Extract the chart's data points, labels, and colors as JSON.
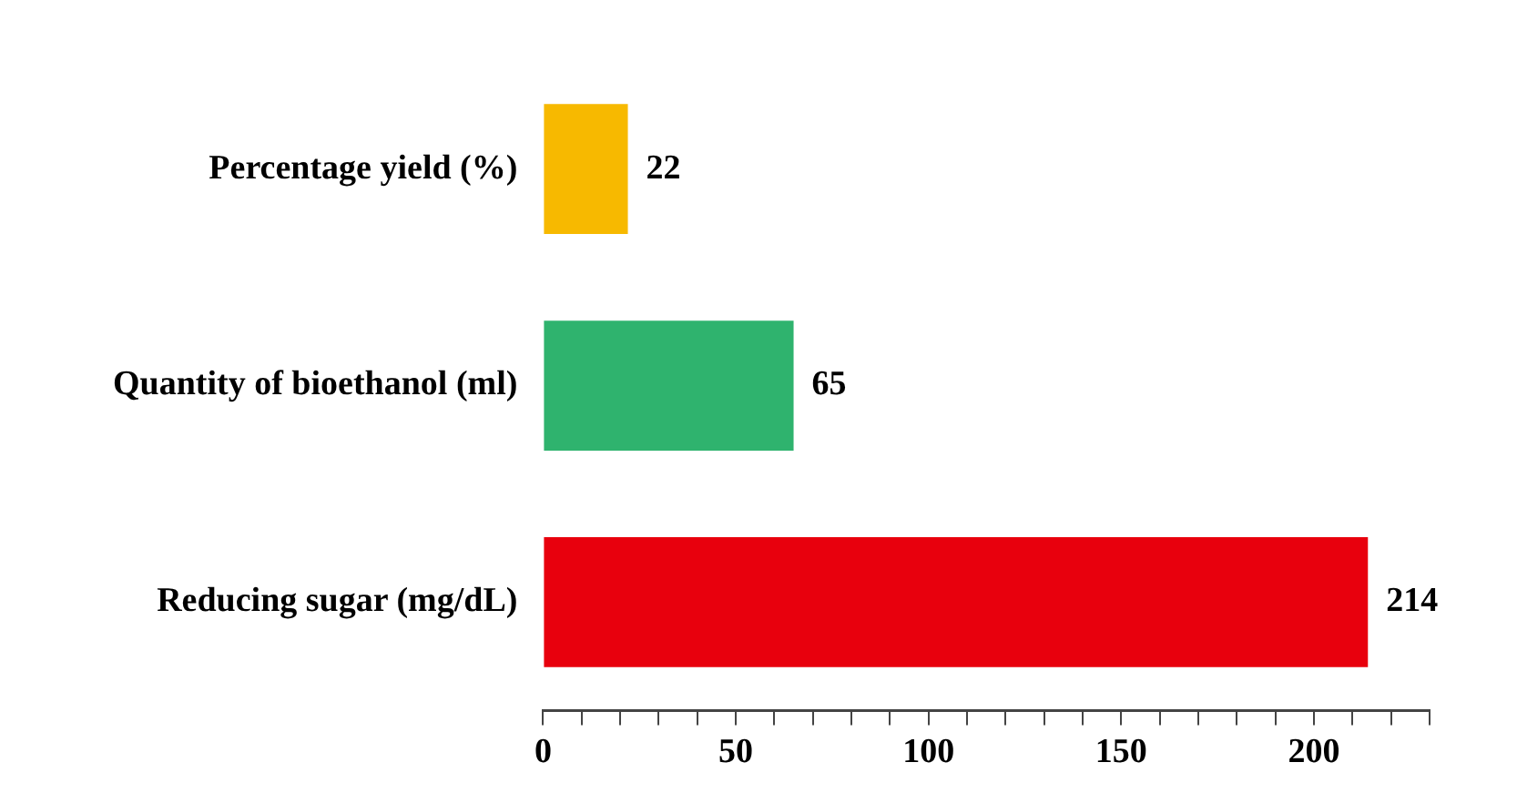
{
  "chart_data": {
    "type": "bar",
    "orientation": "horizontal",
    "categories": [
      "Percentage yield (%)",
      "Quantity of bioethanol (ml)",
      "Reducing sugar (mg/dL)"
    ],
    "values": [
      22,
      65,
      214
    ],
    "colors": [
      "#f7b900",
      "#2fb36e",
      "#e8000d"
    ],
    "data_labels": true,
    "xlim": [
      0,
      230
    ],
    "xticks": [
      0,
      {
        "value": 10,
        "label": null
      },
      {
        "value": 20,
        "label": null
      },
      {
        "value": 30,
        "label": null
      },
      {
        "value": 40,
        "label": null
      },
      50,
      {
        "value": 60,
        "label": null
      },
      {
        "value": 70,
        "label": null
      },
      {
        "value": 80,
        "label": null
      },
      {
        "value": 90,
        "label": null
      },
      100,
      {
        "value": 110,
        "label": null
      },
      {
        "value": 120,
        "label": null
      },
      {
        "value": 130,
        "label": null
      },
      {
        "value": 140,
        "label": null
      },
      150,
      {
        "value": 160,
        "label": null
      },
      {
        "value": 170,
        "label": null
      },
      {
        "value": 180,
        "label": null
      },
      {
        "value": 190,
        "label": null
      },
      200,
      {
        "value": 210,
        "label": null
      },
      {
        "value": 220,
        "label": null
      },
      {
        "value": 230,
        "label": null
      }
    ],
    "grid": false,
    "legend": false
  }
}
